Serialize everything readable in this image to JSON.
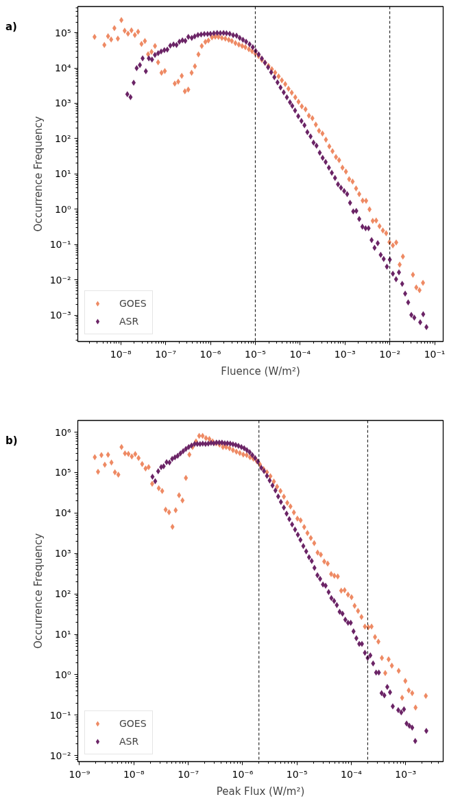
{
  "chart_data": [
    {
      "type": "scatter",
      "title": "a)",
      "xlabel": "Fluence (W/m²)",
      "ylabel": "Occurrence Frequency",
      "log": "xy",
      "marker": "diamond",
      "legend": "bottom left",
      "grid": false,
      "xlim": [
        1.1e-09,
        0.155
      ],
      "ylim": [
        0.00018,
        550000.0
      ],
      "xticks": [
        {
          "value": 1e-08,
          "label": "10⁻⁸"
        },
        {
          "value": 1e-07,
          "label": "10⁻⁷"
        },
        {
          "value": 1e-06,
          "label": "10⁻⁶"
        },
        {
          "value": 1e-05,
          "label": "10⁻⁵"
        },
        {
          "value": 0.0001,
          "label": "10⁻⁴"
        },
        {
          "value": 0.001,
          "label": "10⁻³"
        },
        {
          "value": 0.01,
          "label": "10⁻²"
        },
        {
          "value": 0.1,
          "label": "10⁻¹"
        }
      ],
      "yticks": [
        {
          "value": 0.001,
          "label": "10⁻³"
        },
        {
          "value": 0.01,
          "label": "10⁻²"
        },
        {
          "value": 0.1,
          "label": "10⁻¹"
        },
        {
          "value": 1,
          "label": "10⁰"
        },
        {
          "value": 10,
          "label": "10¹"
        },
        {
          "value": 100,
          "label": "10²"
        },
        {
          "value": 1000,
          "label": "10³"
        },
        {
          "value": 10000.0,
          "label": "10⁴"
        },
        {
          "value": 100000.0,
          "label": "10⁵"
        }
      ],
      "ref_lines": [
        {
          "axis": "x",
          "value": 1e-05,
          "color": "#000000",
          "line_style": "dashed"
        },
        {
          "axis": "x",
          "value": 0.01,
          "color": "#000000",
          "line_style": "dashed"
        }
      ],
      "series": [
        {
          "name": "GOES",
          "color": "#ee8a64",
          "x": [
            2.6e-09,
            4.3e-09,
            5.2e-09,
            6.1e-09,
            7.2e-09,
            8.6e-09,
            1.03e-08,
            1.22e-08,
            1.45e-08,
            1.73e-08,
            2.06e-08,
            2.43e-08,
            2.9e-08,
            3.45e-08,
            4.07e-08,
            4.85e-08,
            5.8e-08,
            6.8e-08,
            8.1e-08,
            9.6e-08,
            1.6e-07,
            1.91e-07,
            2.29e-07,
            2.69e-07,
            3.2e-07,
            3.8e-07,
            4.5e-07,
            5.4e-07,
            6.4e-07,
            7.7e-07,
            9e-07,
            1.08e-06,
            1.28e-06,
            1.51e-06,
            1.8e-06,
            2.15e-06,
            2.56e-06,
            3e-06,
            3.6e-06,
            4.3e-06,
            5.1e-06,
            6e-06,
            7.2e-06,
            8.5e-06,
            1e-05,
            1.18e-05,
            1.4e-05,
            1.66e-05,
            1.97e-05,
            2.34e-05,
            2.77e-05,
            3.31e-05,
            3.91e-05,
            4.65e-05,
            5.5e-05,
            6.5e-05,
            7.8e-05,
            9.2e-05,
            0.000109,
            0.000132,
            0.000157,
            0.000188,
            0.000224,
            0.000264,
            0.000315,
            0.000376,
            0.000448,
            0.000527,
            0.00063,
            0.00074,
            0.00088,
            0.00105,
            0.00124,
            0.00148,
            0.00177,
            0.00208,
            0.00248,
            0.00296,
            0.00353,
            0.00416,
            0.00497,
            0.0059,
            0.007,
            0.0083,
            0.0098,
            0.0117,
            0.0139,
            0.0166,
            0.0196,
            0.0328,
            0.039,
            0.046,
            0.055
          ],
          "values": [
            76000.0,
            45000.0,
            79000.0,
            64000.0,
            135000.0,
            68000.0,
            226000.0,
            113000.0,
            94000.0,
            116000.0,
            86000.0,
            106000.0,
            48000.0,
            58000.0,
            24500.0,
            28600.0,
            42000.0,
            14500.0,
            7300,
            8200,
            3600,
            4100,
            6000,
            2190,
            2440,
            7300,
            11200,
            24200,
            42000,
            55000,
            60000,
            73000,
            77000,
            76000,
            71000,
            68000,
            63000,
            58000,
            51000,
            46000,
            42000,
            39000,
            34000,
            30000,
            25700,
            21800,
            17000,
            14000,
            11500,
            9300,
            7400,
            5800,
            4500,
            3500,
            2600,
            2000,
            1480,
            1100,
            819,
            675,
            446,
            378,
            249,
            167,
            140,
            93,
            60,
            44,
            30,
            24.5,
            15,
            11.6,
            7.1,
            6.1,
            3.9,
            2.7,
            1.76,
            1.73,
            0.99,
            0.47,
            0.48,
            0.33,
            0.25,
            0.21,
            0.117,
            0.095,
            0.114,
            0.027,
            0.046,
            0.014,
            0.0061,
            0.0051,
            0.0083
          ]
        },
        {
          "name": "ASR",
          "color": "#6b2466",
          "x": [
            1.4e-08,
            1.65e-08,
            1.94e-08,
            2.26e-08,
            2.67e-08,
            3.07e-08,
            3.62e-08,
            4.22e-08,
            4.97e-08,
            5.78e-08,
            6.82e-08,
            7.94e-08,
            9.36e-08,
            1.09e-07,
            1.27e-07,
            1.5e-07,
            1.75e-07,
            2.03e-07,
            2.37e-07,
            2.75e-07,
            3.21e-07,
            3.83e-07,
            4.46e-07,
            5.26e-07,
            6.19e-07,
            7.3e-07,
            8.61e-07,
            1e-06,
            1.19e-06,
            1.41e-06,
            1.66e-06,
            1.96e-06,
            2.28e-06,
            2.69e-06,
            3.21e-06,
            3.82e-06,
            4.5e-06,
            5.31e-06,
            6.25e-06,
            7.46e-06,
            8.79e-06,
            1.02e-05,
            1.19e-05,
            1.4e-05,
            1.64e-05,
            1.93e-05,
            2.26e-05,
            2.66e-05,
            3.13e-05,
            3.66e-05,
            4.31e-05,
            5.06e-05,
            5.94e-05,
            6.68e-05,
            7.71e-05,
            9.08e-05,
            0.000107,
            0.000125,
            0.000145,
            0.000171,
            0.000199,
            0.000232,
            0.000274,
            0.000318,
            0.000371,
            0.000438,
            0.000509,
            0.0006,
            0.0007,
            0.000815,
            0.00096,
            0.00112,
            0.0013,
            0.00153,
            0.00179,
            0.00208,
            0.00245,
            0.00289,
            0.00336,
            0.00393,
            0.00457,
            0.00538,
            0.00627,
            0.00731,
            0.00861,
            0.01,
            0.0117,
            0.0138,
            0.016,
            0.0189,
            0.022,
            0.0257,
            0.0302,
            0.0352,
            0.0477,
            0.0556,
            0.0656
          ],
          "values": [
            1800,
            1500,
            3840,
            9900,
            12100,
            18700,
            8100,
            18700,
            17300,
            23400,
            26100,
            29400,
            32200,
            33200,
            43000,
            46300,
            44900,
            55500,
            60800,
            58900,
            76300,
            70700,
            78500,
            86000,
            88700,
            91400,
            91400,
            92700,
            95500,
            98500,
            97000,
            98500,
            95500,
            92700,
            84700,
            82200,
            70700,
            62600,
            55500,
            47000,
            38600,
            30300,
            24200,
            18600,
            14100,
            10500,
            7600,
            5500,
            3900,
            2800,
            2040,
            1480,
            1070,
            843,
            627,
            432,
            316,
            238,
            152,
            115,
            77,
            63,
            40,
            28.4,
            21.7,
            15.0,
            10.8,
            7.7,
            5.1,
            4.05,
            3.3,
            2.7,
            1.52,
            0.87,
            0.9,
            0.53,
            0.32,
            0.29,
            0.29,
            0.134,
            0.081,
            0.109,
            0.051,
            0.039,
            0.0236,
            0.0373,
            0.0149,
            0.0104,
            0.0163,
            0.0077,
            0.0041,
            0.0023,
            0.00102,
            0.00085,
            0.00063,
            0.00107,
            0.00046
          ]
        }
      ]
    },
    {
      "type": "scatter",
      "title": "b)",
      "xlabel": "Peak Flux (W/m²)",
      "ylabel": "Occurrence Frequency",
      "log": "xy",
      "marker": "diamond",
      "legend": "bottom left",
      "grid": false,
      "xlim": [
        9.3e-10,
        0.0049
      ],
      "ylim": [
        0.0071,
        1950000.0
      ],
      "xticks": [
        {
          "value": 1e-09,
          "label": "10⁻⁹"
        },
        {
          "value": 1e-08,
          "label": "10⁻⁸"
        },
        {
          "value": 1e-07,
          "label": "10⁻⁷"
        },
        {
          "value": 1e-06,
          "label": "10⁻⁶"
        },
        {
          "value": 1e-05,
          "label": "10⁻⁵"
        },
        {
          "value": 0.0001,
          "label": "10⁻⁴"
        },
        {
          "value": 0.001,
          "label": "10⁻³"
        }
      ],
      "yticks": [
        {
          "value": 0.01,
          "label": "10⁻²"
        },
        {
          "value": 0.1,
          "label": "10⁻¹"
        },
        {
          "value": 1,
          "label": "10⁰"
        },
        {
          "value": 10,
          "label": "10¹"
        },
        {
          "value": 100,
          "label": "10²"
        },
        {
          "value": 1000,
          "label": "10³"
        },
        {
          "value": 10000.0,
          "label": "10⁴"
        },
        {
          "value": 100000.0,
          "label": "10⁵"
        },
        {
          "value": 1000000.0,
          "label": "10⁶"
        }
      ],
      "ref_lines": [
        {
          "axis": "x",
          "value": 2e-06,
          "color": "#000000",
          "line_style": "dashed"
        },
        {
          "axis": "x",
          "value": 0.0002,
          "color": "#000000",
          "line_style": "dashed"
        }
      ],
      "series": [
        {
          "name": "GOES",
          "color": "#ee8a64",
          "x": [
            1.91e-09,
            2.19e-09,
            2.53e-09,
            2.92e-09,
            3.35e-09,
            3.87e-09,
            4.48e-09,
            5.18e-09,
            5.93e-09,
            6.86e-09,
            7.93e-09,
            9.16e-09,
            1.06e-08,
            1.22e-08,
            1.42e-08,
            1.64e-08,
            1.87e-08,
            2.17e-08,
            2.87e-08,
            3.32e-08,
            3.84e-08,
            4.44e-08,
            5.13e-08,
            5.87e-08,
            6.78e-08,
            7.84e-08,
            9.06e-08,
            1.05e-07,
            1.2e-07,
            1.39e-07,
            1.59e-07,
            1.84e-07,
            2.12e-07,
            2.45e-07,
            2.81e-07,
            3.25e-07,
            3.76e-07,
            4.35e-07,
            4.98e-07,
            5.75e-07,
            6.65e-07,
            7.69e-07,
            8.89e-07,
            1.03e-06,
            1.19e-06,
            1.37e-06,
            1.58e-06,
            1.83e-06,
            2.08e-06,
            2.43e-06,
            2.81e-06,
            3.25e-06,
            3.76e-06,
            4.31e-06,
            4.98e-06,
            5.75e-06,
            6.64e-06,
            7.6e-06,
            8.79e-06,
            1.02e-05,
            1.17e-05,
            1.36e-05,
            1.56e-05,
            1.8e-05,
            2.08e-05,
            2.4e-05,
            2.75e-05,
            3.18e-05,
            3.68e-05,
            4.26e-05,
            4.88e-05,
            5.64e-05,
            6.52e-05,
            7.53e-05,
            8.71e-05,
            0.000101,
            0.000115,
            0.000133,
            0.000154,
            0.000178,
            0.000206,
            0.000236,
            0.000273,
            0.000315,
            0.000365,
            0.000421,
            0.000486,
            0.000557,
            0.000745,
            0.000861,
            0.000986,
            0.00114,
            0.00132,
            0.00152,
            0.00235
          ],
          "values": [
            240000.0,
            105000.0,
            272000.0,
            157000.0,
            275000.0,
            177000.0,
            102000.0,
            89000.0,
            430000.0,
            300000.0,
            290000.0,
            250000.0,
            286000.0,
            230000.0,
            163000.0,
            126000.0,
            136000.0,
            53000.0,
            41000.0,
            35000.0,
            12100.0,
            10400.0,
            4540,
            11700.0,
            27400.0,
            20600.0,
            74000.0,
            279000.0,
            430000.0,
            590000.0,
            810000.0,
            810000.0,
            710000.0,
            680000.0,
            590000.0,
            530000.0,
            490000.0,
            430000.0,
            430000.0,
            400000.0,
            360000.0,
            330000.0,
            305000.0,
            280000.0,
            270000.0,
            240000.0,
            220000.0,
            190000.0,
            160000.0,
            123000.0,
            102000.0,
            81000.0,
            60000.0,
            45000.0,
            35000.0,
            25400.0,
            17800.0,
            14500.0,
            10300.0,
            7300,
            6600,
            4500,
            3200,
            2400,
            1800,
            1050,
            930,
            630,
            560,
            310,
            280,
            270,
            120,
            124,
            96,
            83,
            51,
            38,
            27,
            15.5,
            14.9,
            15.5,
            8.6,
            6.6,
            2.6,
            1.1,
            2.4,
            1.67,
            1.25,
            0.27,
            0.7,
            0.41,
            0.35,
            0.154,
            0.3
          ]
        },
        {
          "name": "ASR",
          "color": "#6b2466",
          "x": [
            2.2e-08,
            2.47e-08,
            2.8e-08,
            3.18e-08,
            3.53e-08,
            4e-08,
            4.52e-08,
            5.07e-08,
            5.7e-08,
            6.4e-08,
            7.19e-08,
            8.07e-08,
            9.06e-08,
            1.02e-07,
            1.15e-07,
            1.31e-07,
            1.47e-07,
            1.65e-07,
            1.85e-07,
            2.08e-07,
            2.34e-07,
            2.63e-07,
            2.95e-07,
            3.31e-07,
            3.72e-07,
            4.18e-07,
            4.7e-07,
            5.27e-07,
            5.92e-07,
            6.65e-07,
            7.47e-07,
            8.39e-07,
            9.51e-07,
            1.07e-06,
            1.2e-06,
            1.35e-06,
            1.51e-06,
            1.7e-06,
            1.91e-06,
            2.21e-06,
            2.48e-06,
            2.81e-06,
            3.15e-06,
            3.55e-06,
            4.02e-06,
            4.52e-06,
            5.07e-06,
            5.75e-06,
            6.45e-06,
            7.24e-06,
            8.15e-06,
            9.23e-06,
            1.04e-05,
            1.16e-05,
            1.31e-05,
            1.48e-05,
            1.67e-05,
            1.87e-05,
            2.1e-05,
            2.38e-05,
            2.67e-05,
            3.01e-05,
            3.37e-05,
            3.83e-05,
            4.3e-05,
            4.83e-05,
            5.42e-05,
            6.1e-05,
            6.9e-05,
            7.76e-05,
            8.71e-05,
            9.77e-05,
            0.00011,
            0.000124,
            0.00014,
            0.000157,
            0.000178,
            0.0002,
            0.000224,
            0.000252,
            0.000286,
            0.000321,
            0.000361,
            0.000406,
            0.000459,
            0.000516,
            0.000579,
            0.000731,
            0.00083,
            0.000931,
            0.00104,
            0.00117,
            0.00132,
            0.0015,
            0.0024
          ],
          "values": [
            79000.0,
            61000.0,
            108000.0,
            136000.0,
            144000.0,
            182000.0,
            177000.0,
            218000.0,
            238000.0,
            261000.0,
            298000.0,
            339000.0,
            386000.0,
            429000.0,
            470000.0,
            510000.0,
            510000.0,
            510000.0,
            520000.0,
            510000.0,
            520000.0,
            540000.0,
            530000.0,
            550000.0,
            550000.0,
            550000.0,
            530000.0,
            530000.0,
            520000.0,
            500000.0,
            480000.0,
            460000.0,
            430000.0,
            400000.0,
            360000.0,
            320000.0,
            270000.0,
            230000.0,
            186000.0,
            131000.0,
            109000.0,
            83000.0,
            64000.0,
            48000.0,
            36000.0,
            25700.0,
            18800.0,
            13600.0,
            9700,
            7100,
            5200,
            3900,
            2900,
            2160,
            1520,
            1120,
            810,
            650,
            440,
            290,
            236,
            170,
            160,
            111,
            79,
            67,
            53,
            36,
            32.5,
            22.9,
            19.3,
            19.3,
            11.8,
            8.0,
            5.8,
            5.8,
            3.5,
            2.6,
            3.0,
            1.9,
            1.13,
            1.13,
            0.35,
            0.31,
            0.5,
            0.37,
            0.166,
            0.133,
            0.117,
            0.14,
            0.062,
            0.055,
            0.049,
            0.023,
            0.041
          ]
        }
      ]
    }
  ]
}
